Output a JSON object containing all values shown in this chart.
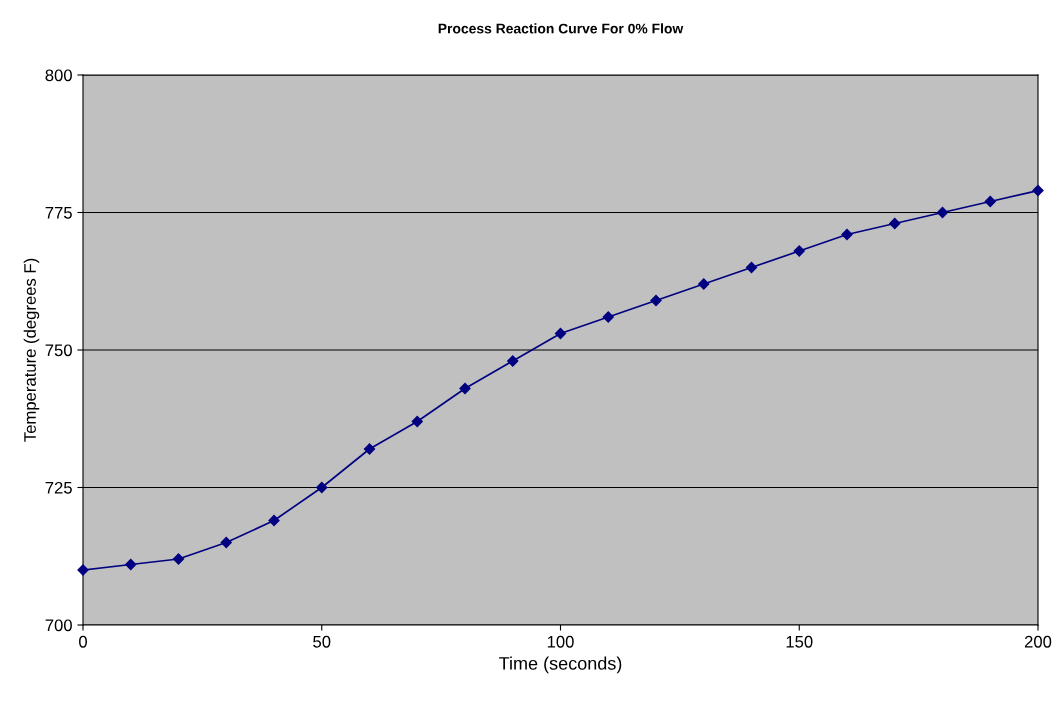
{
  "chart_data": {
    "type": "line",
    "title": "Process Reaction Curve For 0% Flow",
    "xlabel": "Time (seconds)",
    "ylabel": "Temperature (degrees F)",
    "x": [
      0,
      10,
      20,
      30,
      40,
      50,
      60,
      70,
      80,
      90,
      100,
      110,
      120,
      130,
      140,
      150,
      160,
      170,
      180,
      190,
      200
    ],
    "series": [
      {
        "color": "#000080",
        "values": [
          710,
          711,
          712,
          715,
          719,
          725,
          732,
          737,
          743,
          748,
          753,
          756,
          759,
          762,
          765,
          768,
          771,
          773,
          775,
          777,
          779
        ]
      }
    ],
    "xlim": [
      0,
      200
    ],
    "ylim": [
      700,
      800
    ],
    "xticks": [
      0,
      50,
      100,
      150,
      200
    ],
    "yticks": [
      700,
      725,
      750,
      775,
      800
    ],
    "grid": "y",
    "marker": "diamond",
    "line_style": "solid"
  }
}
